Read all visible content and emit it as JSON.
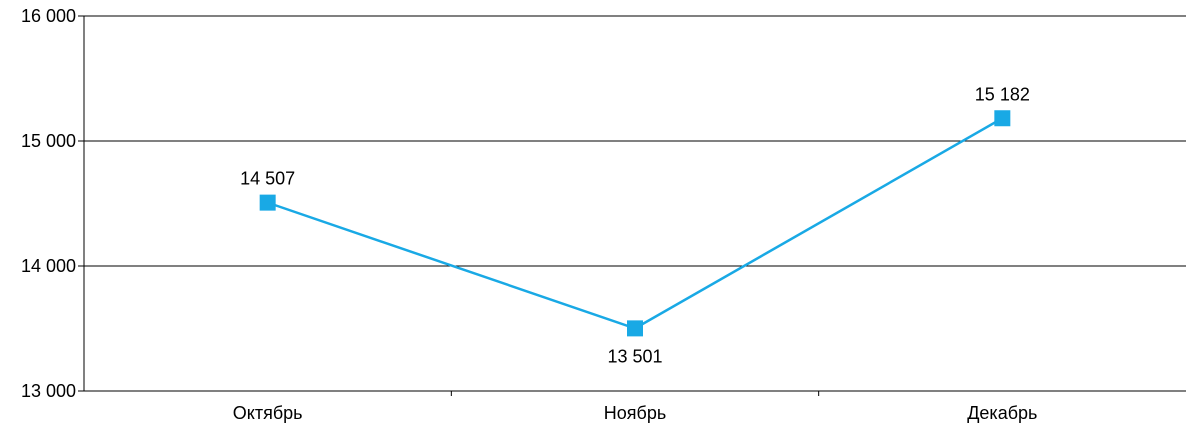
{
  "chart_data": {
    "type": "line",
    "categories": [
      "Октябрь",
      "Ноябрь",
      "Декабрь"
    ],
    "series": [
      {
        "values": [
          14507,
          13501,
          15182
        ]
      }
    ],
    "data_labels": [
      "14 507",
      "13 501",
      "15 182"
    ],
    "ylim": [
      13000,
      16000
    ],
    "yticks": [
      13000,
      14000,
      15000,
      16000
    ],
    "ytick_labels": [
      "13 000",
      "14 000",
      "15 000",
      "16 000"
    ],
    "xlabel": "",
    "ylabel": "",
    "grid": true,
    "line_color": "#19a9e5",
    "marker": "square"
  }
}
